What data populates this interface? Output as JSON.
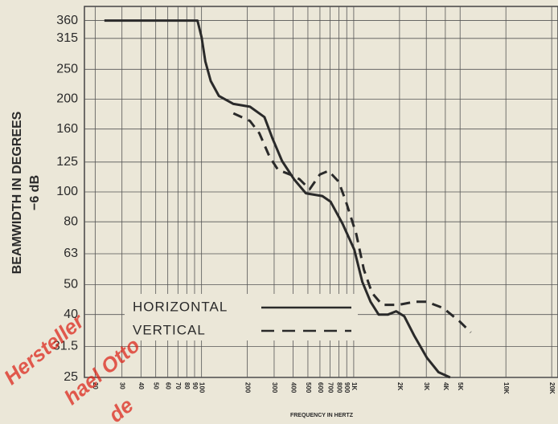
{
  "chart_data": {
    "type": "line",
    "y_label": "BEAMWIDTH IN DEGREES",
    "y_label_sub": "−6 dB",
    "x_label": "FREQUENCY IN HERTZ",
    "log_x": true,
    "log_y": true,
    "grid": true,
    "xlim": [
      17,
      22000
    ],
    "ylim": [
      25,
      400
    ],
    "xticks": [
      20,
      30,
      40,
      50,
      60,
      70,
      80,
      90,
      100,
      200,
      300,
      400,
      500,
      600,
      700,
      800,
      900,
      {
        "value": 1000,
        "label": "1K"
      },
      {
        "value": 2000,
        "label": "2K"
      },
      {
        "value": 3000,
        "label": "3K"
      },
      {
        "value": 4000,
        "label": "4K"
      },
      {
        "value": 5000,
        "label": "5K"
      },
      {
        "value": 10000,
        "label": "10K"
      },
      {
        "value": 20000,
        "label": "20K"
      }
    ],
    "yticks": [
      25,
      31.5,
      40,
      50,
      63,
      80,
      100,
      125,
      160,
      200,
      250,
      315,
      360
    ],
    "series": [
      {
        "name": "HORIZONTAL",
        "color": "#2a2a2a",
        "dash": false,
        "x": [
          23,
          94,
          100,
          106,
          115,
          130,
          162,
          208,
          259,
          291,
          338,
          405,
          485,
          622,
          704,
          843,
          1008,
          1140,
          1290,
          1457,
          1680,
          1900,
          2150,
          2510,
          3020,
          3610,
          4300
        ],
        "values": [
          360,
          360,
          318,
          265,
          229,
          205,
          193,
          189,
          175,
          150,
          126,
          110,
          99,
          97,
          93,
          79,
          65,
          51,
          44,
          40,
          40,
          41,
          39.5,
          34,
          29,
          26,
          25
        ]
      },
      {
        "name": "VERTICAL",
        "color": "#2a2a2a",
        "dash": true,
        "x": [
          162,
          208,
          240,
          280,
          318,
          380,
          440,
          513,
          600,
          683,
          796,
          890,
          1040,
          1165,
          1320,
          1540,
          1970,
          2510,
          3020,
          3870,
          4960,
          5880
        ],
        "values": [
          180,
          170,
          155,
          130,
          118,
          114,
          110,
          102,
          114,
          117,
          108,
          93,
          73,
          56,
          47,
          43,
          43,
          44,
          44,
          42,
          38,
          35
        ]
      }
    ],
    "watermark": [
      "Hersteller",
      "hael Otto",
      "de"
    ]
  }
}
